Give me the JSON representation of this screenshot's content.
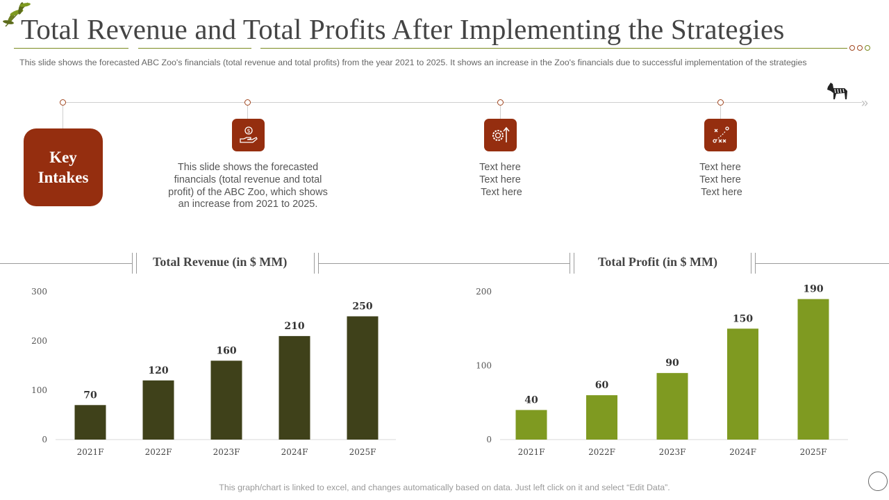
{
  "title": "Total Revenue and Total Profits After Implementing the Strategies",
  "subtitle": "This slide shows the forecasted ABC Zoo's financials (total revenue  and total profits) from the year 2021 to 2025. It shows an increase in the Zoo's financials due to successful implementation  of the strategies",
  "key_box": {
    "line1": "Key",
    "line2": "Intakes"
  },
  "intakes": [
    {
      "icon": "money-hand-icon",
      "lines": [
        "This slide shows the forecasted",
        "financials (total revenue and total",
        "profit) of the ABC Zoo, which shows",
        "an increase from 2021 to 2025."
      ]
    },
    {
      "icon": "gear-growth-icon",
      "lines": [
        "Text here",
        "Text here",
        "Text here"
      ]
    },
    {
      "icon": "strategy-plan-icon",
      "lines": [
        "Text here",
        "Text here",
        "Text here"
      ]
    }
  ],
  "colors": {
    "accent": "#952e0f",
    "revenue_bar": "#3f411a",
    "profit_bar": "#7f9a21",
    "rule": "#7a8a1e"
  },
  "chart_data": [
    {
      "type": "bar",
      "title": "Total Revenue (in $ MM)",
      "categories": [
        "2021F",
        "2022F",
        "2023F",
        "2024F",
        "2025F"
      ],
      "values": [
        70,
        120,
        160,
        210,
        250
      ],
      "yticks": [
        0,
        100,
        200,
        300
      ],
      "ylim": [
        0,
        300
      ],
      "xlabel": "",
      "ylabel": ""
    },
    {
      "type": "bar",
      "title": "Total Profit (in $ MM)",
      "categories": [
        "2021F",
        "2022F",
        "2023F",
        "2024F",
        "2025F"
      ],
      "values": [
        40,
        60,
        90,
        150,
        190
      ],
      "yticks": [
        0,
        100,
        200
      ],
      "ylim": [
        0,
        200
      ],
      "xlabel": "",
      "ylabel": ""
    }
  ],
  "footer": "This graph/chart is linked to excel, and changes automatically based on data. Just left click on it and select “Edit Data”."
}
